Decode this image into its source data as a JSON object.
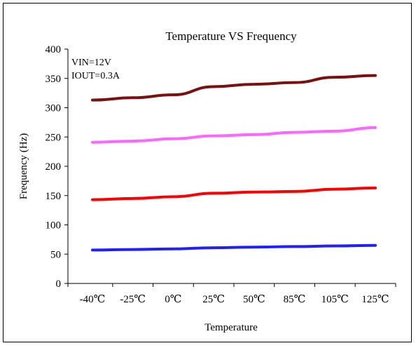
{
  "chart_data": {
    "type": "line",
    "title": "Temperature VS Frequency",
    "xlabel": "Temperature",
    "ylabel": "Frequency (Hz)",
    "ylim": [
      0,
      400
    ],
    "yticks": [
      0,
      50,
      100,
      150,
      200,
      250,
      300,
      350,
      400
    ],
    "categories": [
      "-40℃",
      "-25℃",
      "0℃",
      "25℃",
      "50℃",
      "85℃",
      "105℃",
      "125℃"
    ],
    "annotations": [
      "VIN=12V",
      "IOUT=0.3A"
    ],
    "grid": false,
    "series": [
      {
        "color": "#7a1010",
        "values": [
          313,
          317,
          322,
          336,
          340,
          343,
          352,
          355
        ]
      },
      {
        "color": "#ff66ff",
        "values": [
          241,
          243,
          247,
          252,
          254,
          258,
          260,
          266
        ]
      },
      {
        "color": "#ff0000",
        "values": [
          143,
          145,
          148,
          154,
          156,
          157,
          161,
          163
        ]
      },
      {
        "color": "#1f1fff",
        "values": [
          57,
          58,
          59,
          61,
          62,
          63,
          64,
          65
        ]
      }
    ]
  }
}
